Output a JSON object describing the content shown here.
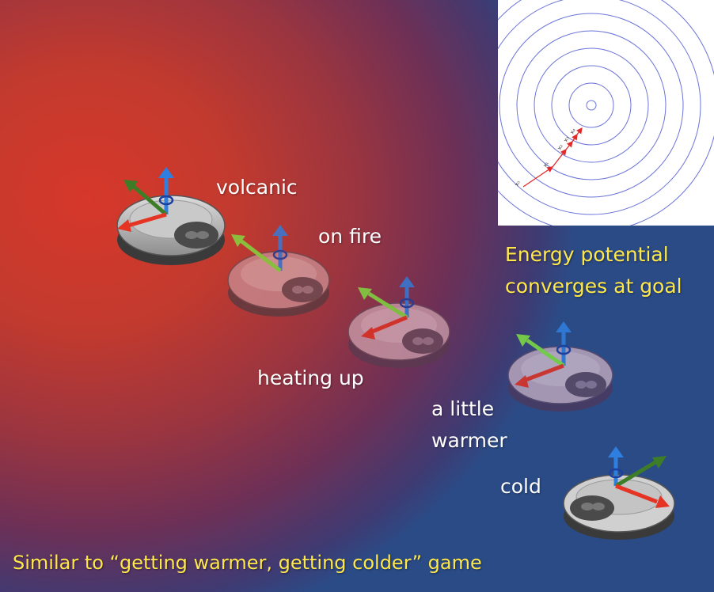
{
  "labels": {
    "volcanic": "volcanic",
    "on_fire": "on fire",
    "heating_up": "heating up",
    "a_little": "a little",
    "warmer": "warmer",
    "cold": "cold"
  },
  "caption": "Similar to “getting warmer, getting colder” game",
  "energy_note": {
    "line1": "Energy potential",
    "line2": "converges at goal"
  },
  "inset": {
    "waypoints": [
      "x₀",
      "x₁",
      "x₂",
      "x₃",
      "x₄"
    ],
    "ring_color": "#6b74d8",
    "path_color": "#e02a2a"
  },
  "colors": {
    "label_text": "#ffffff",
    "note_text": "#ffe84a",
    "arrow_up": "#2f7fe0",
    "arrow_green": "#7fe040",
    "arrow_green_dark": "#3d7d28",
    "arrow_red": "#e53424"
  }
}
